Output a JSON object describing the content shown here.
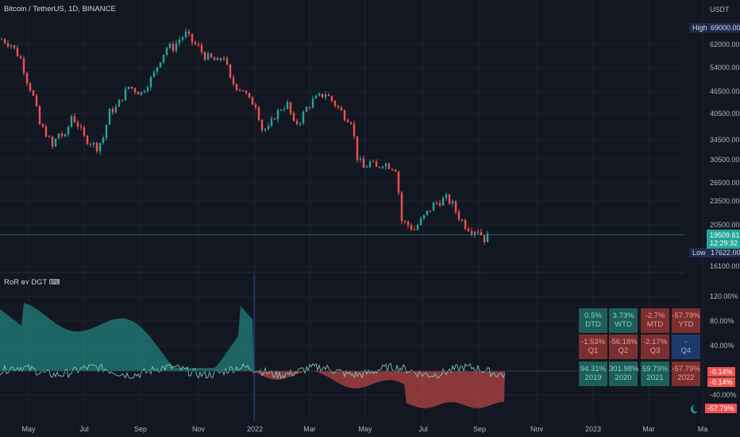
{
  "header": {
    "symbol_title": "Bitcoin / TetherUS, 1D, BINANCE",
    "currency": "USDT",
    "indicator_title": "RoR ʙʏ DGT ⌨"
  },
  "price_axis": {
    "ticks": [
      "62000.00",
      "54000.00",
      "46500.00",
      "40500.00",
      "34500.00",
      "30500.00",
      "26500.00",
      "23500.00",
      "20500.00",
      "16100.00"
    ],
    "high_label": "High",
    "high_value": "69000.00",
    "low_label": "Low",
    "low_value": "17622.00",
    "last_price": "19509.61",
    "countdown": "12:29:32"
  },
  "indicator_axis": {
    "ticks": [
      "120.00%",
      "80.00%",
      "40.00%",
      "-40.00%"
    ],
    "tag1": "-0.14%",
    "tag2": "-0.14%",
    "tag3": "-57.79%"
  },
  "time_axis": [
    "May",
    "Jul",
    "Sep",
    "Nov",
    "2022",
    "Mar",
    "May",
    "Jul",
    "Sep",
    "Nov",
    "2023",
    "Mar",
    "Ma"
  ],
  "ror_table": {
    "rows": [
      [
        {
          "value": "0.5%",
          "label": "DTD",
          "tone": "pos"
        },
        {
          "value": "3.73%",
          "label": "WTD",
          "tone": "pos"
        },
        {
          "value": "-2.7%",
          "label": "MTD",
          "tone": "neg"
        },
        {
          "value": "-57.79%",
          "label": "YTD",
          "tone": "neg"
        }
      ],
      [
        {
          "value": "-1.53%",
          "label": "Q1",
          "tone": "neg"
        },
        {
          "value": "-56.18%",
          "label": "Q2",
          "tone": "neg"
        },
        {
          "value": "-2.17%",
          "label": "Q3",
          "tone": "neg"
        },
        {
          "value": "-",
          "label": "Q4",
          "tone": "neu"
        }
      ],
      [
        {
          "value": "94.31%",
          "label": "2019",
          "tone": "pos"
        },
        {
          "value": "301.98%",
          "label": "2020",
          "tone": "pos"
        },
        {
          "value": "59.79%",
          "label": "2021",
          "tone": "pos"
        },
        {
          "value": "-57.79%",
          "label": "2022",
          "tone": "neg"
        }
      ]
    ]
  },
  "colors": {
    "up": "#26a69a",
    "down": "#ef5350",
    "background": "#131722",
    "grid": "#1f2330"
  },
  "price_series": [
    [
      0,
      64000
    ],
    [
      3,
      62000
    ],
    [
      6,
      57000
    ],
    [
      8,
      50000
    ],
    [
      10,
      45000
    ],
    [
      12,
      38000
    ],
    [
      14,
      36000
    ],
    [
      16,
      33000
    ],
    [
      18,
      36000
    ],
    [
      20,
      35000
    ],
    [
      22,
      40000
    ],
    [
      24,
      38000
    ],
    [
      26,
      35000
    ],
    [
      28,
      34000
    ],
    [
      30,
      33000
    ],
    [
      32,
      35000
    ],
    [
      34,
      41000
    ],
    [
      36,
      42000
    ],
    [
      38,
      45000
    ],
    [
      40,
      48000
    ],
    [
      42,
      47000
    ],
    [
      44,
      46000
    ],
    [
      46,
      49000
    ],
    [
      48,
      52000
    ],
    [
      50,
      57000
    ],
    [
      52,
      61000
    ],
    [
      54,
      61000
    ],
    [
      56,
      64000
    ],
    [
      58,
      66000
    ],
    [
      60,
      63000
    ],
    [
      62,
      61000
    ],
    [
      64,
      58000
    ],
    [
      66,
      57000
    ],
    [
      68,
      56000
    ],
    [
      70,
      58000
    ],
    [
      72,
      50000
    ],
    [
      74,
      48000
    ],
    [
      76,
      47000
    ],
    [
      78,
      44000
    ],
    [
      80,
      43000
    ],
    [
      82,
      37000
    ],
    [
      84,
      37000
    ],
    [
      86,
      40000
    ],
    [
      88,
      42000
    ],
    [
      90,
      43000
    ],
    [
      92,
      38000
    ],
    [
      94,
      39000
    ],
    [
      96,
      42000
    ],
    [
      98,
      44000
    ],
    [
      100,
      45000
    ],
    [
      102,
      46000
    ],
    [
      104,
      44000
    ],
    [
      106,
      42000
    ],
    [
      108,
      40000
    ],
    [
      110,
      39000
    ],
    [
      112,
      31000
    ],
    [
      114,
      29000
    ],
    [
      116,
      30000
    ],
    [
      118,
      29000
    ],
    [
      120,
      30000
    ],
    [
      122,
      29500
    ],
    [
      124,
      29000
    ],
    [
      126,
      21000
    ],
    [
      128,
      20500
    ],
    [
      130,
      20000
    ],
    [
      132,
      21000
    ],
    [
      134,
      22000
    ],
    [
      136,
      23000
    ],
    [
      138,
      23500
    ],
    [
      140,
      24000
    ],
    [
      142,
      23000
    ],
    [
      144,
      21500
    ],
    [
      146,
      20500
    ],
    [
      148,
      20000
    ],
    [
      150,
      20000
    ],
    [
      152,
      19000
    ],
    [
      154,
      19500
    ]
  ]
}
